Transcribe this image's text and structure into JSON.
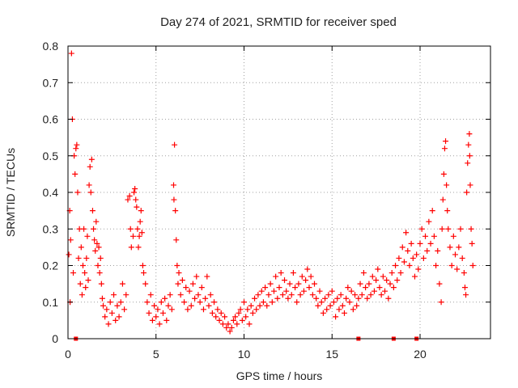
{
  "chart_data": {
    "type": "scatter",
    "title": "Day 274 of 2021, SRMTID for receiver sped",
    "xlabel": "GPS time / hours",
    "ylabel": "SRMTID / TECUs",
    "xlim": [
      0,
      24
    ],
    "ylim": [
      0,
      0.8
    ],
    "xticks": [
      0,
      5,
      10,
      15,
      20
    ],
    "xtick_labels": [
      "0",
      "5",
      "10",
      "15",
      "20"
    ],
    "yticks": [
      0,
      0.1,
      0.2,
      0.3,
      0.4,
      0.5,
      0.6,
      0.7,
      0.8
    ],
    "ytick_labels": [
      "0",
      "0.1",
      "0.2",
      "0.3",
      "0.4",
      "0.5",
      "0.6",
      "0.7",
      "0.8"
    ],
    "grid": true,
    "marker": "plus",
    "series": [
      {
        "name": "SRMTID",
        "color": "#ff0000",
        "points": [
          [
            0.05,
            0.23
          ],
          [
            0.1,
            0.35
          ],
          [
            0.12,
            0.1
          ],
          [
            0.15,
            0.27
          ],
          [
            0.2,
            0.78
          ],
          [
            0.25,
            0.6
          ],
          [
            0.3,
            0.18
          ],
          [
            0.35,
            0.5
          ],
          [
            0.4,
            0.45
          ],
          [
            0.45,
            0.52
          ],
          [
            0.5,
            0.53
          ],
          [
            0.55,
            0.4
          ],
          [
            0.6,
            0.22
          ],
          [
            0.65,
            0.3
          ],
          [
            0.7,
            0.15
          ],
          [
            0.75,
            0.25
          ],
          [
            0.8,
            0.12
          ],
          [
            0.85,
            0.2
          ],
          [
            0.9,
            0.3
          ],
          [
            0.95,
            0.18
          ],
          [
            1.0,
            0.14
          ],
          [
            1.05,
            0.22
          ],
          [
            1.1,
            0.28
          ],
          [
            1.15,
            0.16
          ],
          [
            1.2,
            0.42
          ],
          [
            1.25,
            0.47
          ],
          [
            1.3,
            0.4
          ],
          [
            1.35,
            0.49
          ],
          [
            1.4,
            0.35
          ],
          [
            1.45,
            0.3
          ],
          [
            1.5,
            0.27
          ],
          [
            1.55,
            0.24
          ],
          [
            1.6,
            0.32
          ],
          [
            1.65,
            0.26
          ],
          [
            1.7,
            0.2
          ],
          [
            1.75,
            0.25
          ],
          [
            1.8,
            0.18
          ],
          [
            1.85,
            0.22
          ],
          [
            1.9,
            0.15
          ],
          [
            1.95,
            0.11
          ],
          [
            2.0,
            0.09
          ],
          [
            2.1,
            0.06
          ],
          [
            2.2,
            0.08
          ],
          [
            2.3,
            0.04
          ],
          [
            2.4,
            0.1
          ],
          [
            2.5,
            0.07
          ],
          [
            2.6,
            0.12
          ],
          [
            2.7,
            0.05
          ],
          [
            2.8,
            0.09
          ],
          [
            2.9,
            0.06
          ],
          [
            3.0,
            0.1
          ],
          [
            3.1,
            0.15
          ],
          [
            3.2,
            0.08
          ],
          [
            3.3,
            0.12
          ],
          [
            3.4,
            0.38
          ],
          [
            3.5,
            0.39
          ],
          [
            3.55,
            0.3
          ],
          [
            3.6,
            0.25
          ],
          [
            3.7,
            0.28
          ],
          [
            3.75,
            0.4
          ],
          [
            3.8,
            0.41
          ],
          [
            3.85,
            0.38
          ],
          [
            3.9,
            0.36
          ],
          [
            3.95,
            0.3
          ],
          [
            4.0,
            0.25
          ],
          [
            4.05,
            0.28
          ],
          [
            4.1,
            0.32
          ],
          [
            4.15,
            0.35
          ],
          [
            4.2,
            0.29
          ],
          [
            4.25,
            0.2
          ],
          [
            4.3,
            0.18
          ],
          [
            4.4,
            0.15
          ],
          [
            4.5,
            0.1
          ],
          [
            4.6,
            0.07
          ],
          [
            4.7,
            0.12
          ],
          [
            4.8,
            0.05
          ],
          [
            4.9,
            0.09
          ],
          [
            5.0,
            0.06
          ],
          [
            5.1,
            0.08
          ],
          [
            5.2,
            0.04
          ],
          [
            5.3,
            0.1
          ],
          [
            5.4,
            0.07
          ],
          [
            5.5,
            0.11
          ],
          [
            5.6,
            0.05
          ],
          [
            5.7,
            0.09
          ],
          [
            5.8,
            0.12
          ],
          [
            5.9,
            0.08
          ],
          [
            6.0,
            0.42
          ],
          [
            6.02,
            0.38
          ],
          [
            6.05,
            0.53
          ],
          [
            6.1,
            0.35
          ],
          [
            6.15,
            0.27
          ],
          [
            6.2,
            0.2
          ],
          [
            6.25,
            0.15
          ],
          [
            6.3,
            0.18
          ],
          [
            6.4,
            0.12
          ],
          [
            6.5,
            0.16
          ],
          [
            6.6,
            0.1
          ],
          [
            6.7,
            0.14
          ],
          [
            6.8,
            0.08
          ],
          [
            6.9,
            0.13
          ],
          [
            7.0,
            0.09
          ],
          [
            7.1,
            0.15
          ],
          [
            7.2,
            0.11
          ],
          [
            7.3,
            0.17
          ],
          [
            7.4,
            0.12
          ],
          [
            7.5,
            0.1
          ],
          [
            7.6,
            0.14
          ],
          [
            7.7,
            0.08
          ],
          [
            7.8,
            0.11
          ],
          [
            7.9,
            0.17
          ],
          [
            8.0,
            0.09
          ],
          [
            8.1,
            0.12
          ],
          [
            8.2,
            0.07
          ],
          [
            8.3,
            0.1
          ],
          [
            8.4,
            0.06
          ],
          [
            8.5,
            0.08
          ],
          [
            8.6,
            0.05
          ],
          [
            8.7,
            0.07
          ],
          [
            8.8,
            0.04
          ],
          [
            8.9,
            0.06
          ],
          [
            9.0,
            0.03
          ],
          [
            9.1,
            0.04
          ],
          [
            9.2,
            0.02
          ],
          [
            9.3,
            0.03
          ],
          [
            9.4,
            0.05
          ],
          [
            9.5,
            0.06
          ],
          [
            9.6,
            0.04
          ],
          [
            9.7,
            0.07
          ],
          [
            9.8,
            0.08
          ],
          [
            9.9,
            0.05
          ],
          [
            10.0,
            0.1
          ],
          [
            10.1,
            0.06
          ],
          [
            10.2,
            0.08
          ],
          [
            10.3,
            0.04
          ],
          [
            10.4,
            0.09
          ],
          [
            10.5,
            0.07
          ],
          [
            10.6,
            0.11
          ],
          [
            10.7,
            0.08
          ],
          [
            10.8,
            0.12
          ],
          [
            10.9,
            0.09
          ],
          [
            11.0,
            0.13
          ],
          [
            11.1,
            0.1
          ],
          [
            11.2,
            0.14
          ],
          [
            11.3,
            0.09
          ],
          [
            11.4,
            0.12
          ],
          [
            11.5,
            0.15
          ],
          [
            11.6,
            0.1
          ],
          [
            11.7,
            0.13
          ],
          [
            11.8,
            0.17
          ],
          [
            11.9,
            0.11
          ],
          [
            12.0,
            0.14
          ],
          [
            12.1,
            0.18
          ],
          [
            12.2,
            0.12
          ],
          [
            12.3,
            0.16
          ],
          [
            12.4,
            0.13
          ],
          [
            12.5,
            0.11
          ],
          [
            12.6,
            0.15
          ],
          [
            12.7,
            0.12
          ],
          [
            12.8,
            0.18
          ],
          [
            12.9,
            0.14
          ],
          [
            13.0,
            0.1
          ],
          [
            13.1,
            0.15
          ],
          [
            13.2,
            0.12
          ],
          [
            13.3,
            0.17
          ],
          [
            13.4,
            0.13
          ],
          [
            13.5,
            0.16
          ],
          [
            13.6,
            0.19
          ],
          [
            13.7,
            0.14
          ],
          [
            13.8,
            0.17
          ],
          [
            13.9,
            0.12
          ],
          [
            14.0,
            0.15
          ],
          [
            14.1,
            0.11
          ],
          [
            14.2,
            0.09
          ],
          [
            14.3,
            0.13
          ],
          [
            14.4,
            0.1
          ],
          [
            14.5,
            0.07
          ],
          [
            14.6,
            0.11
          ],
          [
            14.7,
            0.08
          ],
          [
            14.8,
            0.12
          ],
          [
            14.9,
            0.09
          ],
          [
            15.0,
            0.13
          ],
          [
            15.1,
            0.1
          ],
          [
            15.2,
            0.06
          ],
          [
            15.3,
            0.11
          ],
          [
            15.4,
            0.08
          ],
          [
            15.5,
            0.12
          ],
          [
            15.6,
            0.09
          ],
          [
            15.7,
            0.07
          ],
          [
            15.8,
            0.11
          ],
          [
            15.9,
            0.14
          ],
          [
            16.0,
            0.1
          ],
          [
            16.1,
            0.13
          ],
          [
            16.2,
            0.08
          ],
          [
            16.3,
            0.12
          ],
          [
            16.4,
            0.09
          ],
          [
            16.5,
            0.11
          ],
          [
            16.6,
            0.15
          ],
          [
            16.7,
            0.12
          ],
          [
            16.8,
            0.18
          ],
          [
            16.9,
            0.14
          ],
          [
            17.0,
            0.11
          ],
          [
            17.1,
            0.15
          ],
          [
            17.2,
            0.12
          ],
          [
            17.3,
            0.17
          ],
          [
            17.4,
            0.13
          ],
          [
            17.5,
            0.16
          ],
          [
            17.6,
            0.19
          ],
          [
            17.7,
            0.14
          ],
          [
            17.8,
            0.12
          ],
          [
            17.9,
            0.17
          ],
          [
            18.0,
            0.13
          ],
          [
            18.1,
            0.16
          ],
          [
            18.2,
            0.11
          ],
          [
            18.3,
            0.15
          ],
          [
            18.4,
            0.18
          ],
          [
            18.5,
            0.14
          ],
          [
            18.6,
            0.2
          ],
          [
            18.7,
            0.16
          ],
          [
            18.8,
            0.22
          ],
          [
            18.9,
            0.18
          ],
          [
            19.0,
            0.25
          ],
          [
            19.1,
            0.21
          ],
          [
            19.2,
            0.29
          ],
          [
            19.3,
            0.24
          ],
          [
            19.4,
            0.2
          ],
          [
            19.5,
            0.26
          ],
          [
            19.6,
            0.22
          ],
          [
            19.7,
            0.17
          ],
          [
            19.8,
            0.23
          ],
          [
            19.9,
            0.19
          ],
          [
            20.0,
            0.26
          ],
          [
            20.1,
            0.3
          ],
          [
            20.2,
            0.22
          ],
          [
            20.3,
            0.28
          ],
          [
            20.4,
            0.24
          ],
          [
            20.5,
            0.32
          ],
          [
            20.6,
            0.26
          ],
          [
            20.7,
            0.35
          ],
          [
            20.8,
            0.28
          ],
          [
            20.9,
            0.2
          ],
          [
            21.0,
            0.24
          ],
          [
            21.1,
            0.15
          ],
          [
            21.2,
            0.1
          ],
          [
            21.25,
            0.3
          ],
          [
            21.3,
            0.38
          ],
          [
            21.35,
            0.45
          ],
          [
            21.4,
            0.52
          ],
          [
            21.45,
            0.54
          ],
          [
            21.5,
            0.42
          ],
          [
            21.55,
            0.35
          ],
          [
            21.6,
            0.3
          ],
          [
            21.7,
            0.25
          ],
          [
            21.8,
            0.2
          ],
          [
            21.9,
            0.28
          ],
          [
            22.0,
            0.23
          ],
          [
            22.1,
            0.19
          ],
          [
            22.2,
            0.25
          ],
          [
            22.3,
            0.3
          ],
          [
            22.4,
            0.22
          ],
          [
            22.5,
            0.18
          ],
          [
            22.55,
            0.14
          ],
          [
            22.6,
            0.12
          ],
          [
            22.65,
            0.4
          ],
          [
            22.7,
            0.48
          ],
          [
            22.75,
            0.53
          ],
          [
            22.8,
            0.56
          ],
          [
            22.82,
            0.5
          ],
          [
            22.85,
            0.42
          ],
          [
            22.9,
            0.3
          ],
          [
            22.95,
            0.26
          ],
          [
            23.0,
            0.2
          ]
        ]
      }
    ],
    "outlier_markers_at_zero": [
      0.45,
      16.5,
      18.5,
      19.8
    ]
  }
}
